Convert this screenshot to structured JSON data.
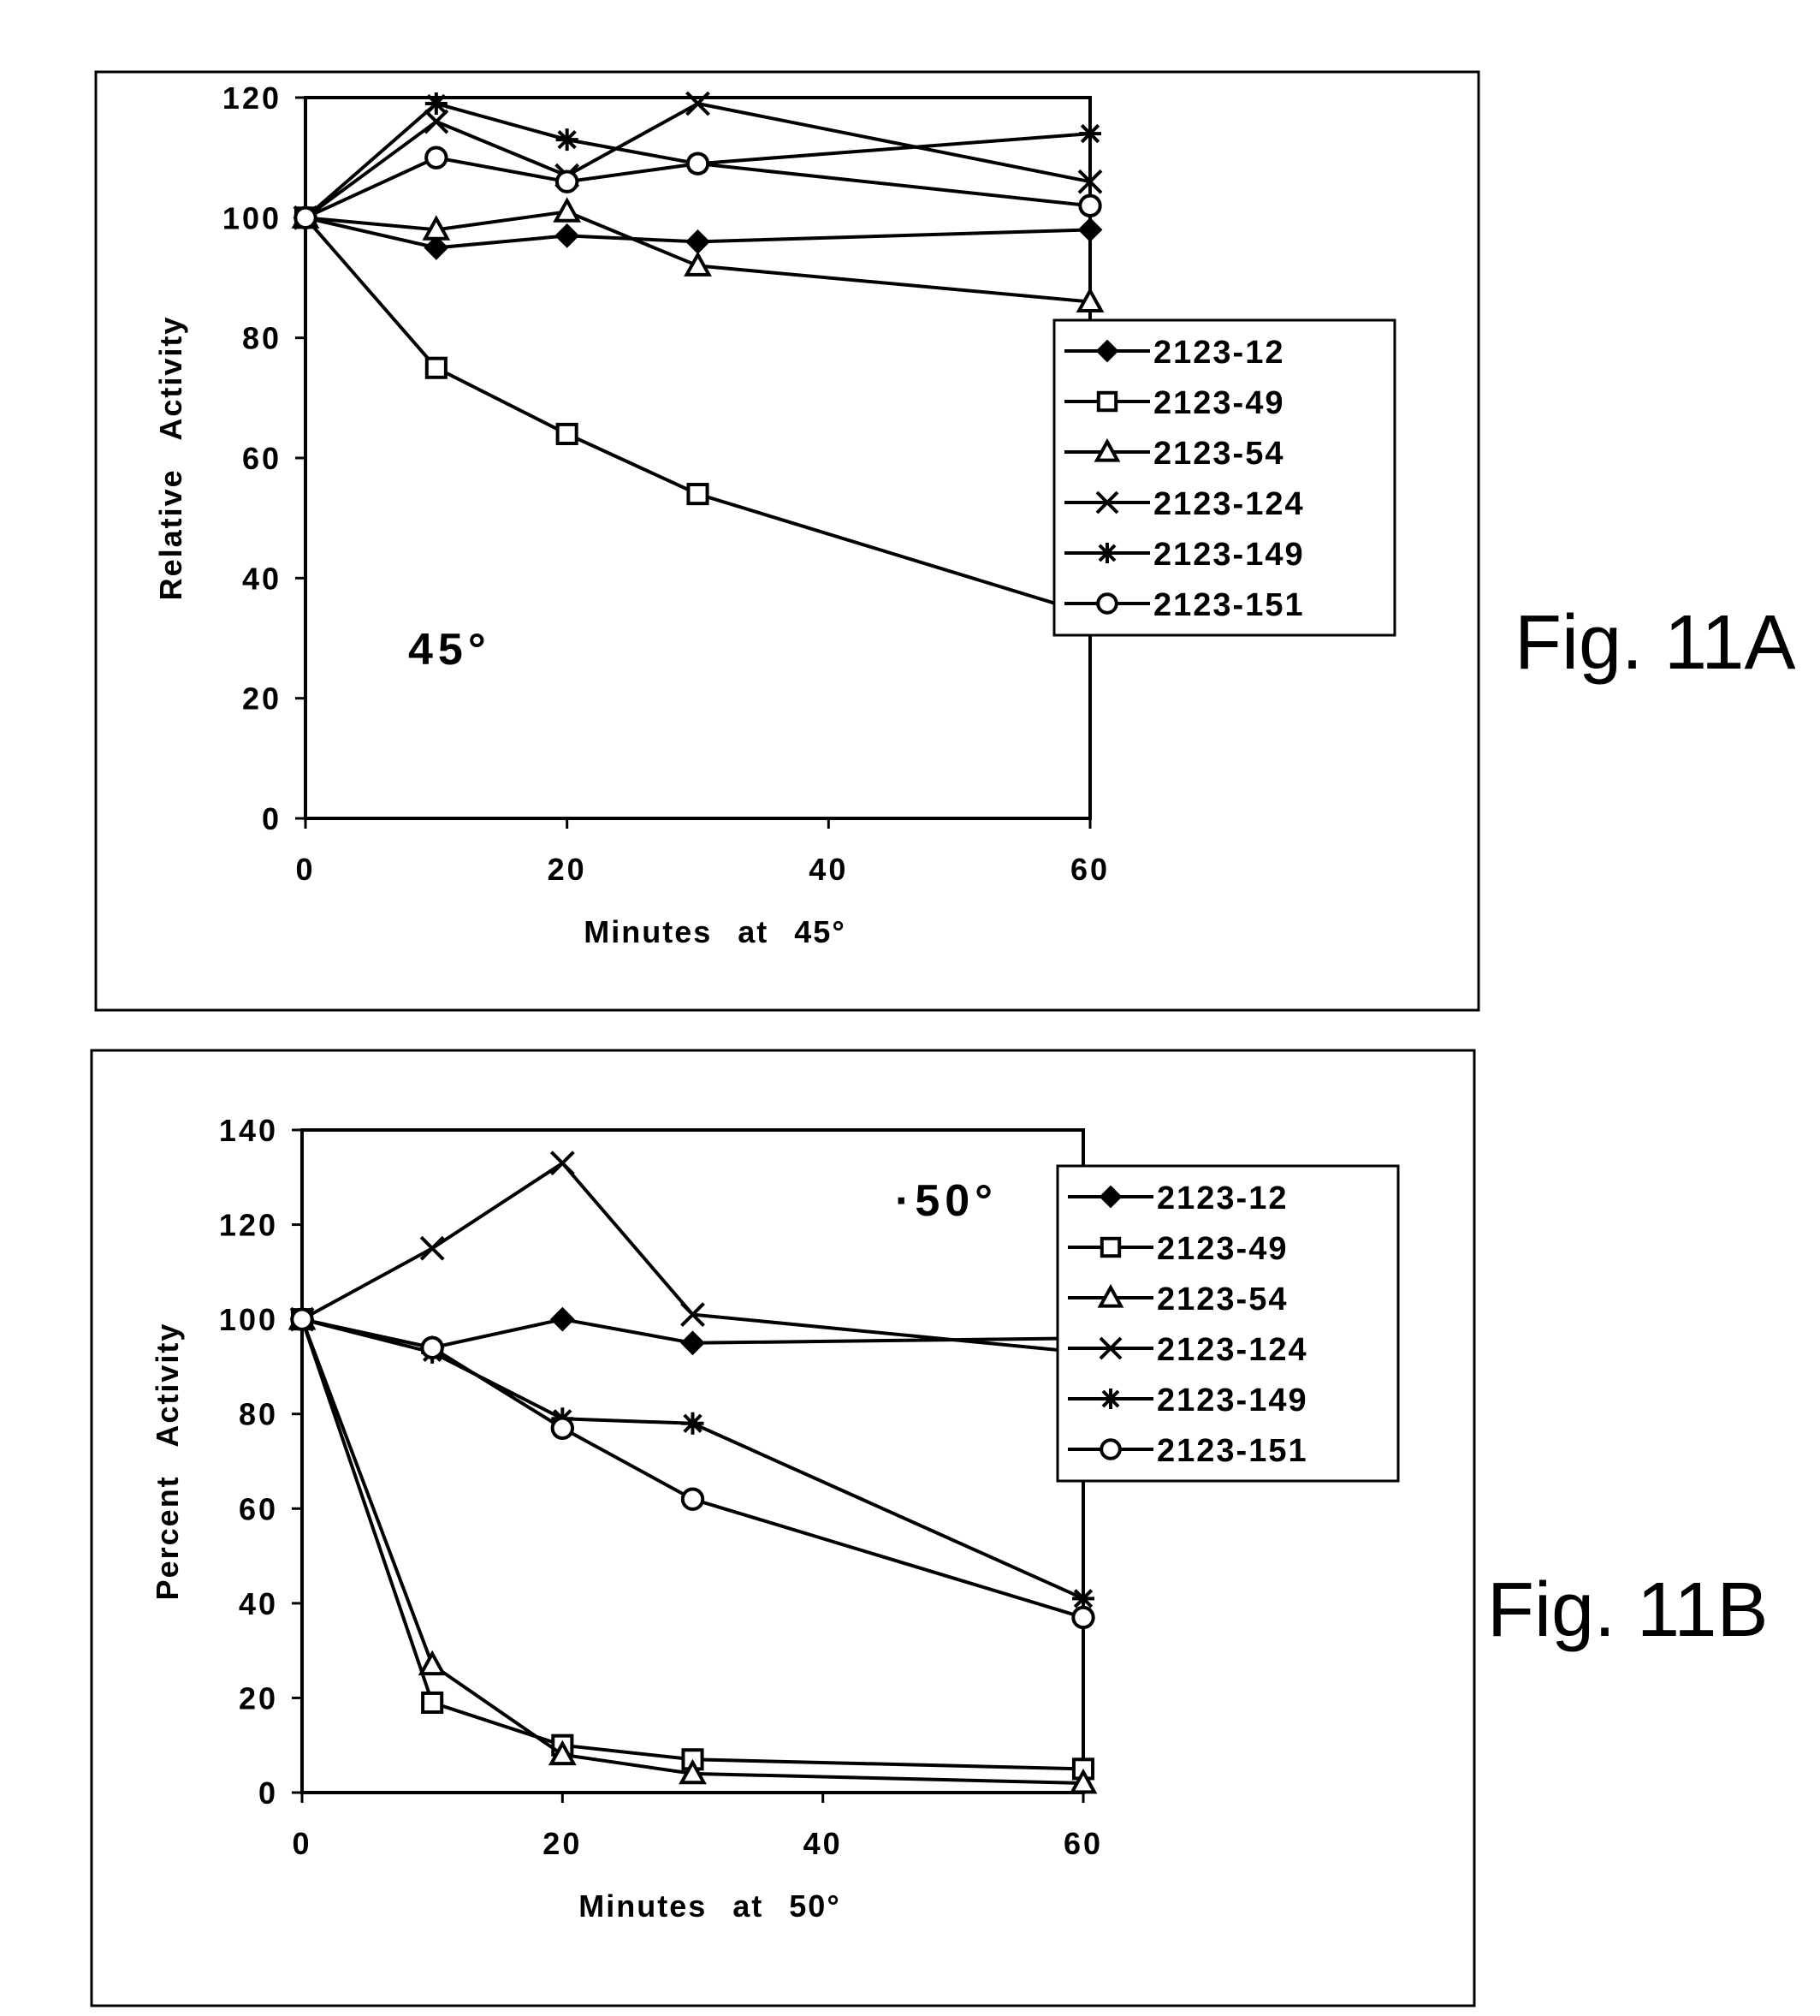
{
  "chart_data": [
    {
      "type": "line",
      "figure_label": "Fig. 11A",
      "annotation": "45°",
      "xlabel": "Minutes at 45°",
      "ylabel": "Relative Activity",
      "xlim": [
        0,
        60
      ],
      "ylim": [
        0,
        120
      ],
      "xticks": [
        0,
        20,
        40,
        60
      ],
      "yticks": [
        0,
        20,
        40,
        60,
        80,
        100,
        120
      ],
      "grid": false,
      "legend_position": "right",
      "series": [
        {
          "name": "2123-12",
          "marker": "diamond-filled",
          "x": [
            0,
            10,
            20,
            30,
            60
          ],
          "y": [
            100,
            95,
            97,
            96,
            98
          ]
        },
        {
          "name": "2123-49",
          "marker": "square-open",
          "x": [
            0,
            10,
            20,
            30,
            60
          ],
          "y": [
            100,
            75,
            64,
            54,
            34
          ]
        },
        {
          "name": "2123-54",
          "marker": "triangle-open",
          "x": [
            0,
            10,
            20,
            30,
            60
          ],
          "y": [
            100,
            98,
            101,
            92,
            86
          ]
        },
        {
          "name": "2123-124",
          "marker": "x",
          "x": [
            0,
            10,
            20,
            30,
            60
          ],
          "y": [
            100,
            116,
            107,
            119,
            106
          ]
        },
        {
          "name": "2123-149",
          "marker": "asterisk",
          "x": [
            0,
            10,
            20,
            30,
            60
          ],
          "y": [
            100,
            119,
            113,
            109,
            114
          ]
        },
        {
          "name": "2123-151",
          "marker": "circle-open",
          "x": [
            0,
            10,
            20,
            30,
            60
          ],
          "y": [
            100,
            110,
            106,
            109,
            102
          ]
        }
      ]
    },
    {
      "type": "line",
      "figure_label": "Fig. 11B",
      "annotation": "·50°",
      "xlabel": "Minutes at 50°",
      "ylabel": "Percent Activity",
      "xlim": [
        0,
        60
      ],
      "ylim": [
        0,
        140
      ],
      "xticks": [
        0,
        20,
        40,
        60
      ],
      "yticks": [
        0,
        20,
        40,
        60,
        80,
        100,
        120,
        140
      ],
      "grid": false,
      "legend_position": "right",
      "series": [
        {
          "name": "2123-12",
          "marker": "diamond-filled",
          "x": [
            0,
            10,
            20,
            30,
            60
          ],
          "y": [
            100,
            94,
            100,
            95,
            96
          ]
        },
        {
          "name": "2123-49",
          "marker": "square-open",
          "x": [
            0,
            10,
            20,
            30,
            60
          ],
          "y": [
            100,
            19,
            10,
            7,
            5
          ]
        },
        {
          "name": "2123-54",
          "marker": "triangle-open",
          "x": [
            0,
            10,
            20,
            30,
            60
          ],
          "y": [
            100,
            27,
            8,
            4,
            2
          ]
        },
        {
          "name": "2123-124",
          "marker": "x",
          "x": [
            0,
            10,
            20,
            30,
            60
          ],
          "y": [
            100,
            115,
            133,
            101,
            93
          ]
        },
        {
          "name": "2123-149",
          "marker": "asterisk",
          "x": [
            0,
            10,
            20,
            30,
            60
          ],
          "y": [
            100,
            93,
            79,
            78,
            41
          ]
        },
        {
          "name": "2123-151",
          "marker": "circle-open",
          "x": [
            0,
            10,
            20,
            30,
            60
          ],
          "y": [
            100,
            94,
            77,
            62,
            37
          ]
        }
      ]
    }
  ]
}
